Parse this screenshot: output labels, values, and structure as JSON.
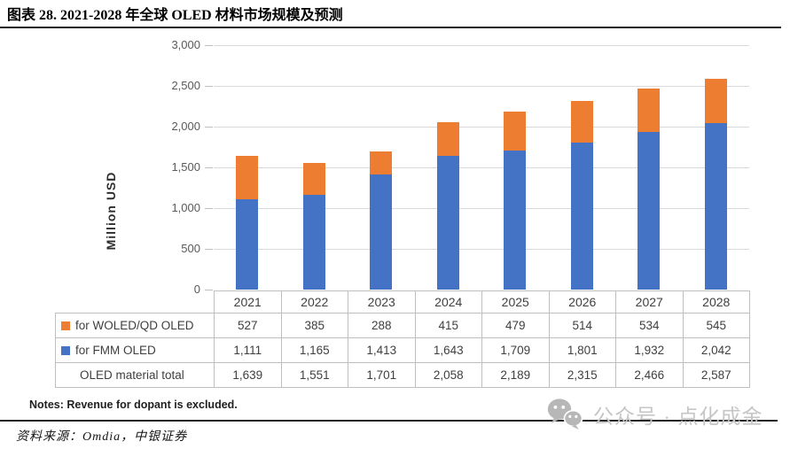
{
  "header": {
    "title": "图表 28. 2021-2028 年全球 OLED 材料市场规模及预测"
  },
  "chart_data": {
    "type": "bar",
    "stacked": true,
    "title": "2021-2028 年全球 OLED 材料市场规模及预测",
    "xlabel": "",
    "ylabel": "Million USD",
    "ylim": [
      0,
      3000
    ],
    "yticks": [
      0,
      500,
      1000,
      1500,
      2000,
      2500,
      3000
    ],
    "grid": true,
    "legend_position": "in-table-left-column",
    "categories": [
      "2021",
      "2022",
      "2023",
      "2024",
      "2025",
      "2026",
      "2027",
      "2028"
    ],
    "series": [
      {
        "name": "for WOLED/QD OLED",
        "color": "#ED7D31",
        "stack_position": "top",
        "values": [
          527,
          385,
          288,
          415,
          479,
          514,
          534,
          545
        ]
      },
      {
        "name": "for FMM OLED",
        "color": "#4472C4",
        "stack_position": "bottom",
        "values": [
          1111,
          1165,
          1413,
          1643,
          1709,
          1801,
          1932,
          2042
        ]
      }
    ],
    "total_row": {
      "label": "OLED material total",
      "values": [
        1639,
        1551,
        1701,
        2058,
        2189,
        2315,
        2466,
        2587
      ]
    }
  },
  "notes": "Notes: Revenue for dopant is excluded.",
  "source": "资料来源：Omdia，中银证券",
  "watermark": {
    "icon": "wechat-icon",
    "text": "公众号 · 点化成金"
  },
  "colors": {
    "orange_series": "#ED7D31",
    "blue_series": "#4472C4",
    "gridline": "#D9D9D9",
    "table_border": "#BFBFBF",
    "axis_text": "#595959",
    "watermark_gray": "#C6C6C6"
  }
}
